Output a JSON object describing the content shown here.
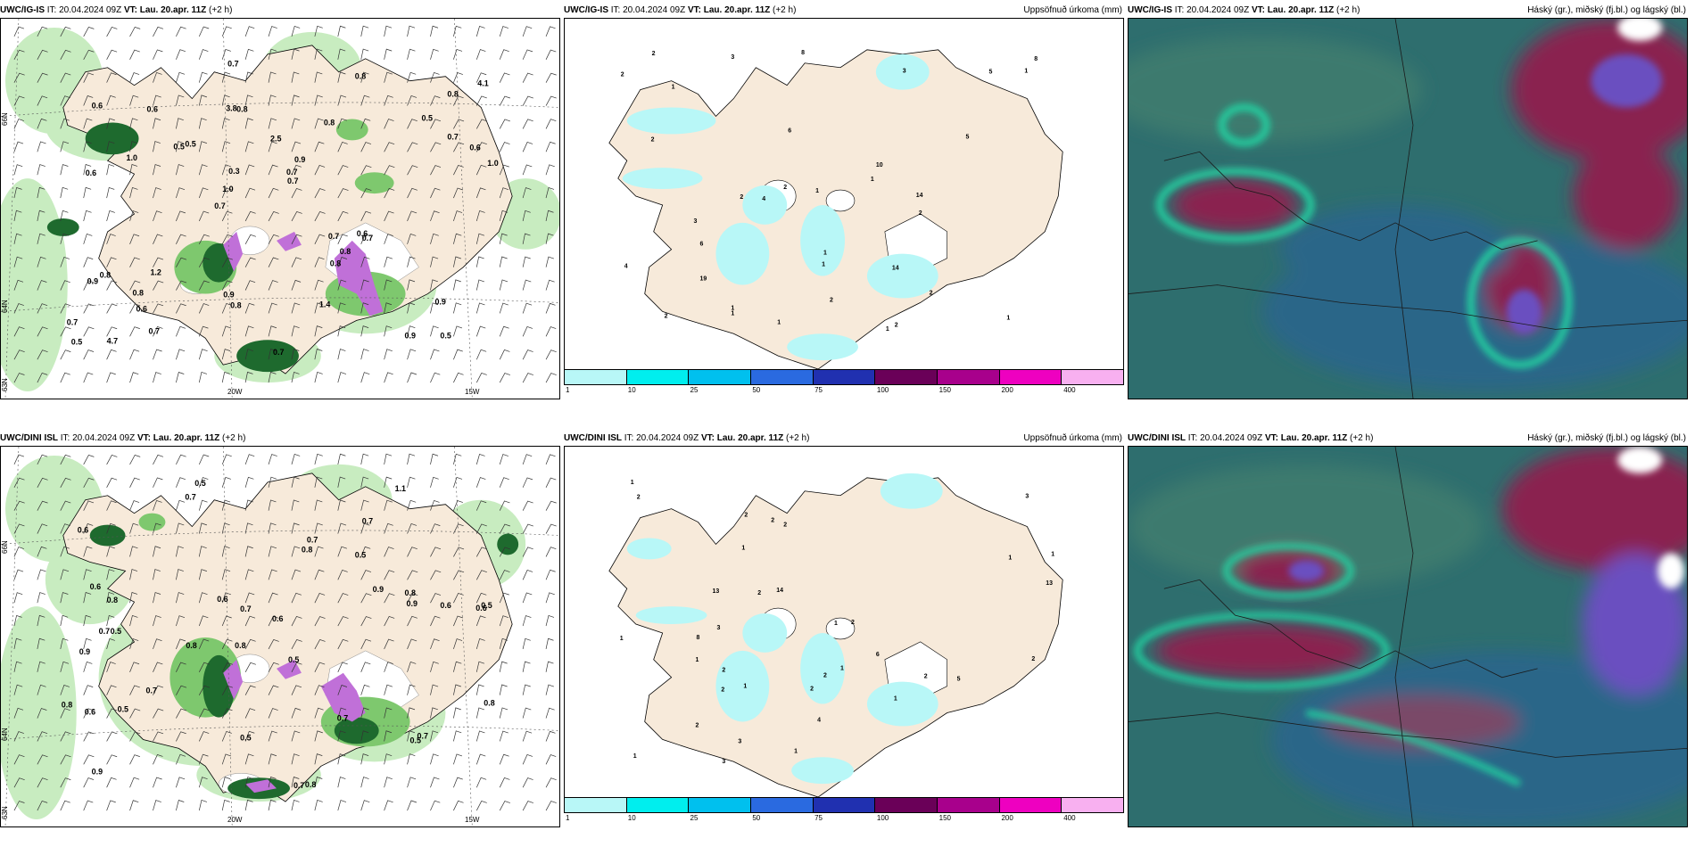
{
  "top": {
    "wind": {
      "model": "UWC/IG-IS",
      "it_label": "IT:",
      "it": "20.04.2024 09Z",
      "vt_label": "VT:",
      "vt": "Lau. 20.apr. 11Z",
      "lead": "(+2 h)",
      "axis": {
        "lat_66": "66N",
        "lat_64": "64N",
        "lat_63": "63N",
        "lon_20": "20W",
        "lon_15": "15W"
      },
      "values": [
        "0.5",
        "0.6",
        "0.8",
        "0.7",
        "0.8",
        "4.7",
        "3.8",
        "2.5",
        "0.8",
        "0.5",
        "0.7",
        "0.6",
        "0.8",
        "0.9",
        "0.7",
        "0.6",
        "0.7",
        "1.0",
        "0.7",
        "0.7",
        "1.0",
        "0.9",
        "0.3",
        "0.6",
        "0.8",
        "1.2",
        "0.9",
        "0.9",
        "0.6",
        "0.7",
        "0.5",
        "1.0",
        "0.8",
        "0.7",
        "0.6",
        "0.7",
        "0.5",
        "0.8",
        "0.7",
        "0.9",
        "0.5",
        "4.1",
        "0.8",
        "1.4",
        "0.8"
      ]
    },
    "precip": {
      "model": "UWC/IG-IS",
      "it_label": "IT:",
      "it": "20.04.2024 09Z",
      "vt_label": "VT:",
      "vt": "Lau. 20.apr. 11Z",
      "lead": "(+2 h)",
      "right_title": "Uppsöfnuð úrkoma (mm)",
      "values": [
        "1",
        "1",
        "1",
        "2",
        "3",
        "1",
        "2",
        "1",
        "8",
        "6",
        "5",
        "2",
        "2",
        "1",
        "3",
        "1",
        "2",
        "1",
        "4",
        "2",
        "14",
        "8",
        "10",
        "2",
        "5",
        "3",
        "4",
        "6",
        "2",
        "2",
        "1",
        "2",
        "1",
        "1",
        "19",
        "14"
      ]
    },
    "clouds": {
      "model": "UWC/IG-IS",
      "it_label": "IT:",
      "it": "20.04.2024 09Z",
      "vt_label": "VT:",
      "vt": "Lau. 20.apr. 11Z",
      "lead": "(+2 h)",
      "right_title": "Háský (gr.), miðský (fj.bl.) og lágský (bl.)"
    }
  },
  "bottom": {
    "wind": {
      "model": "UWC/DINI ISL",
      "it_label": "IT:",
      "it": "20.04.2024 09Z",
      "vt_label": "VT:",
      "vt": "Lau. 20.apr. 11Z",
      "lead": "(+2 h)",
      "axis": {
        "lat_66": "66N",
        "lat_64": "64N",
        "lat_63": "63N",
        "lon_20": "20W",
        "lon_15": "15W"
      },
      "values": [
        "0.5",
        "0.7",
        "0.6",
        "0.8",
        "0.5",
        "0.5",
        "0.6",
        "0.5",
        "0.9",
        "0.8",
        "0.6",
        "0.9",
        "0.7",
        "0.8",
        "0.7",
        "0.8",
        "0.5",
        "1.1",
        "0.9",
        "0.7",
        "0.8",
        "0.7",
        "0.5",
        "0.6",
        "0.8",
        "0.6",
        "0.7",
        "0.9",
        "0.7",
        "0.6",
        "0.5",
        "0.7",
        "0.5",
        "0.6",
        "0.7",
        "0.8",
        "0.8"
      ]
    },
    "precip": {
      "model": "UWC/DINI ISL",
      "it_label": "IT:",
      "it": "20.04.2024 09Z",
      "vt_label": "VT:",
      "vt": "Lau. 20.apr. 11Z",
      "lead": "(+2 h)",
      "right_title": "Uppsöfnuð úrkoma (mm)",
      "values": [
        "2",
        "1",
        "1",
        "3",
        "1",
        "1",
        "2",
        "1",
        "1",
        "2",
        "2",
        "2",
        "3",
        "1",
        "2",
        "2",
        "2",
        "2",
        "1",
        "14",
        "13",
        "4",
        "3",
        "3",
        "8",
        "1",
        "2",
        "5",
        "1",
        "2",
        "6",
        "2",
        "1",
        "2",
        "1",
        "13"
      ]
    },
    "clouds": {
      "model": "UWC/DINI ISL",
      "it_label": "IT:",
      "it": "20.04.2024 09Z",
      "vt_label": "VT:",
      "vt": "Lau. 20.apr. 11Z",
      "lead": "(+2 h)",
      "right_title": "Háský (gr.), miðský (fj.bl.) og lágský (bl.)"
    }
  },
  "colorbar": {
    "labels": [
      "1",
      "10",
      "25",
      "50",
      "75",
      "100",
      "150",
      "200",
      "400"
    ],
    "colors": [
      "#b8f7f7",
      "#00eeee",
      "#00c0ee",
      "#2a6ae0",
      "#2030b0",
      "#6a0058",
      "#a8008c",
      "#ee00c0",
      "#f8b0f0"
    ]
  },
  "colors": {
    "land": "#f7eada",
    "sea": "#ffffff",
    "green_light": "#c8ecc0",
    "green_mid": "#7ec86e",
    "green_dark": "#1e6a2e",
    "precip_pink": "#c070d8",
    "cloud_base": "#2e6e6e",
    "cloud_blue": "#2a6688",
    "cloud_red": "#8a2050",
    "cloud_cyan": "#20d0a0"
  }
}
